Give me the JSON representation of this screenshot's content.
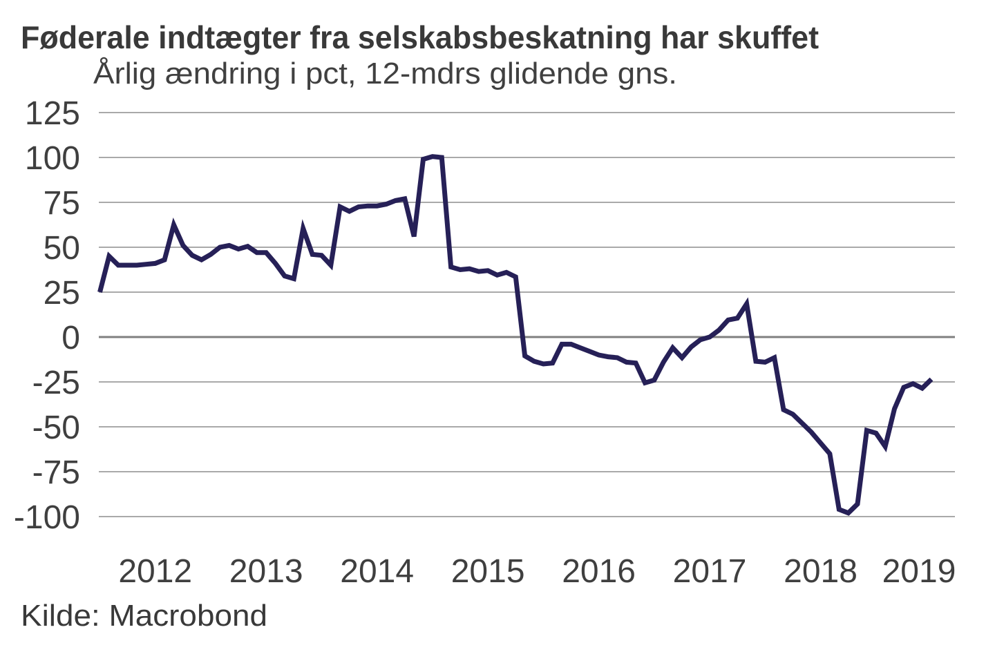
{
  "page": {
    "background": "#ffffff"
  },
  "chart_data": {
    "type": "line",
    "title": "Føderale indtægter fra selskabsbeskatning har skuffet",
    "subtitle": "Årlig ændring i pct, 12-mdrs glidende gns.",
    "source": "Kilde: Macrobond",
    "xlabel": "",
    "ylabel": "",
    "grid": "horizontal",
    "legend": "none",
    "ylim": [
      -112,
      137
    ],
    "y_ticks": [
      125,
      100,
      75,
      50,
      25,
      0,
      -25,
      -50,
      -75,
      -100
    ],
    "x_tick_labels": [
      "2012",
      "2013",
      "2014",
      "2015",
      "2016",
      "2017",
      "2018",
      "2019"
    ],
    "series": [
      {
        "name": "Årlig ændring i pct, 12-mdrs glidende gns.",
        "x_start": "2012-01",
        "x_end": "2019-07",
        "frequency": "monthly",
        "values": [
          25,
          45,
          40,
          40,
          40,
          40.5,
          41,
          43,
          62.5,
          51,
          45.5,
          43,
          46,
          50,
          51,
          49,
          50.5,
          47,
          47,
          41,
          34,
          32.5,
          60.5,
          46,
          45.5,
          40,
          72.5,
          70,
          72.5,
          73,
          73,
          74,
          76,
          77,
          56,
          99,
          100.5,
          100,
          39,
          37.5,
          38,
          36.5,
          37,
          34.5,
          36,
          33.5,
          -10.5,
          -13.5,
          -15,
          -14.5,
          -4,
          -4,
          -6,
          -8,
          -10,
          -11,
          -11.5,
          -14,
          -14.5,
          -25.5,
          -24,
          -14,
          -6,
          -11.5,
          -5.5,
          -1.5,
          0,
          3.8,
          9.5,
          10.5,
          18.5,
          -13.5,
          -14,
          -11.5,
          -40.5,
          -43,
          -48,
          -53,
          -59,
          -65,
          -96,
          -98,
          -93,
          -52,
          -53.5,
          -61,
          -40,
          -28,
          -26,
          -28.5,
          -23.5
        ]
      }
    ],
    "colors": {
      "line": "#262057",
      "gridline": "#a9a9a9",
      "zero_line": "#7f7f7f",
      "text": "#3f3f3f"
    }
  }
}
